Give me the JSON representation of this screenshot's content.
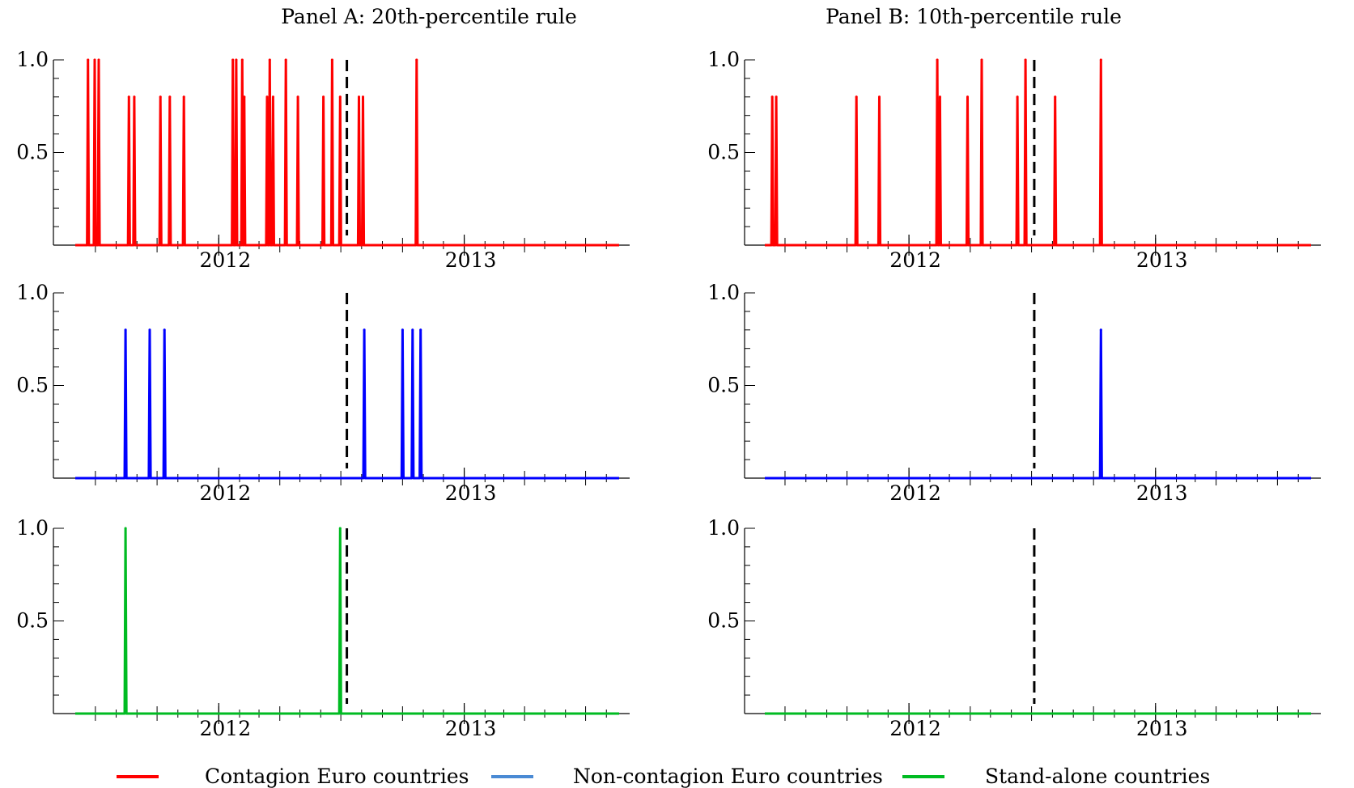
{
  "panel_titles": [
    "Panel A: 20th-percentile rule",
    "Panel B: 10th-percentile rule"
  ],
  "legend": [
    {
      "label": "Contagion Euro countries",
      "color": "#ff0000"
    },
    {
      "label": "Non-contagion Euro countries",
      "color": "#4a8ad4"
    },
    {
      "label": "Stand-alone countries",
      "color": "#00bb22"
    }
  ],
  "colors": {
    "contagion": "#ff0000",
    "non_contagion": "#0000ff",
    "stand_alone": "#00bb22",
    "marker_line": "#000000"
  },
  "chart_data": [
    {
      "type": "line",
      "panel": "Panel A: 20th-percentile rule",
      "series": [
        {
          "name": "Contagion Euro countries",
          "baseline": 0,
          "spikes": [
            {
              "date": "2011-06-20",
              "value": 1.0
            },
            {
              "date": "2011-06-30",
              "value": 1.0
            },
            {
              "date": "2011-07-06",
              "value": 1.0
            },
            {
              "date": "2011-08-20",
              "value": 0.8
            },
            {
              "date": "2011-08-28",
              "value": 0.8
            },
            {
              "date": "2011-10-06",
              "value": 0.8
            },
            {
              "date": "2011-10-20",
              "value": 0.8
            },
            {
              "date": "2011-11-10",
              "value": 0.8
            },
            {
              "date": "2012-01-22",
              "value": 1.0
            },
            {
              "date": "2012-01-27",
              "value": 1.0
            },
            {
              "date": "2012-02-05",
              "value": 1.0
            },
            {
              "date": "2012-02-08",
              "value": 0.8
            },
            {
              "date": "2012-03-13",
              "value": 0.8
            },
            {
              "date": "2012-03-17",
              "value": 1.0
            },
            {
              "date": "2012-03-22",
              "value": 0.8
            },
            {
              "date": "2012-04-10",
              "value": 1.0
            },
            {
              "date": "2012-04-28",
              "value": 0.8
            },
            {
              "date": "2012-06-05",
              "value": 0.8
            },
            {
              "date": "2012-06-18",
              "value": 1.0
            },
            {
              "date": "2012-06-30",
              "value": 0.8
            },
            {
              "date": "2012-07-28",
              "value": 0.8
            },
            {
              "date": "2012-08-03",
              "value": 0.8
            },
            {
              "date": "2012-10-22",
              "value": 1.0
            }
          ]
        }
      ],
      "xlim": [
        "2011-06-01",
        "2013-08-20"
      ],
      "xticks": [
        "2012",
        "2013"
      ],
      "ylim": [
        0,
        1.0
      ],
      "yticks": [
        "0.5",
        "1.0"
      ],
      "vline": "2012-07-10"
    },
    {
      "type": "line",
      "panel": "Panel B: 10th-percentile rule",
      "series": [
        {
          "name": "Contagion Euro countries",
          "baseline": 0,
          "spikes": [
            {
              "date": "2011-06-12",
              "value": 0.8
            },
            {
              "date": "2011-06-18",
              "value": 0.8
            },
            {
              "date": "2011-10-15",
              "value": 0.8
            },
            {
              "date": "2011-11-18",
              "value": 0.8
            },
            {
              "date": "2012-02-12",
              "value": 1.0
            },
            {
              "date": "2012-02-16",
              "value": 0.8
            },
            {
              "date": "2012-03-28",
              "value": 0.8
            },
            {
              "date": "2012-04-18",
              "value": 1.0
            },
            {
              "date": "2012-06-10",
              "value": 0.8
            },
            {
              "date": "2012-06-22",
              "value": 1.0
            },
            {
              "date": "2012-08-05",
              "value": 0.8
            },
            {
              "date": "2012-10-12",
              "value": 1.0
            }
          ]
        }
      ],
      "xlim": [
        "2011-06-01",
        "2013-08-20"
      ],
      "xticks": [
        "2012",
        "2013"
      ],
      "ylim": [
        0,
        1.0
      ],
      "yticks": [
        "0.5",
        "1.0"
      ],
      "vline": "2012-07-05"
    },
    {
      "type": "line",
      "panel": "Panel A: 20th-percentile rule",
      "series": [
        {
          "name": "Non-contagion Euro countries",
          "baseline": 0,
          "spikes": [
            {
              "date": "2011-08-15",
              "value": 0.8
            },
            {
              "date": "2011-09-20",
              "value": 0.8
            },
            {
              "date": "2011-10-12",
              "value": 0.8
            },
            {
              "date": "2012-08-05",
              "value": 0.8
            },
            {
              "date": "2012-10-01",
              "value": 0.8
            },
            {
              "date": "2012-10-16",
              "value": 0.8
            },
            {
              "date": "2012-10-28",
              "value": 0.8
            }
          ]
        }
      ],
      "xlim": [
        "2011-06-01",
        "2013-08-20"
      ],
      "xticks": [
        "2012",
        "2013"
      ],
      "ylim": [
        0,
        1.0
      ],
      "yticks": [
        "0.5",
        "1.0"
      ],
      "vline": "2012-07-10"
    },
    {
      "type": "line",
      "panel": "Panel B: 10th-percentile rule",
      "series": [
        {
          "name": "Non-contagion Euro countries",
          "baseline": 0,
          "spikes": [
            {
              "date": "2012-10-12",
              "value": 0.8
            }
          ]
        }
      ],
      "xlim": [
        "2011-06-01",
        "2013-08-20"
      ],
      "xticks": [
        "2012",
        "2013"
      ],
      "ylim": [
        0,
        1.0
      ],
      "yticks": [
        "0.5",
        "1.0"
      ],
      "vline": "2012-07-05"
    },
    {
      "type": "line",
      "panel": "Panel A: 20th-percentile rule",
      "series": [
        {
          "name": "Stand-alone countries",
          "baseline": 0,
          "spikes": [
            {
              "date": "2011-08-15",
              "value": 1.0
            },
            {
              "date": "2012-06-30",
              "value": 1.0
            }
          ]
        }
      ],
      "xlim": [
        "2011-06-01",
        "2013-08-20"
      ],
      "xticks": [
        "2012",
        "2013"
      ],
      "ylim": [
        0,
        1.0
      ],
      "yticks": [
        "0.5",
        "1.0"
      ],
      "vline": "2012-07-10"
    },
    {
      "type": "line",
      "panel": "Panel B: 10th-percentile rule",
      "series": [
        {
          "name": "Stand-alone countries",
          "baseline": 0,
          "spikes": []
        }
      ],
      "xlim": [
        "2011-06-01",
        "2013-08-20"
      ],
      "xticks": [
        "2012",
        "2013"
      ],
      "ylim": [
        0,
        1.0
      ],
      "yticks": [
        "0.5",
        "1.0"
      ],
      "vline": "2012-07-05"
    }
  ]
}
